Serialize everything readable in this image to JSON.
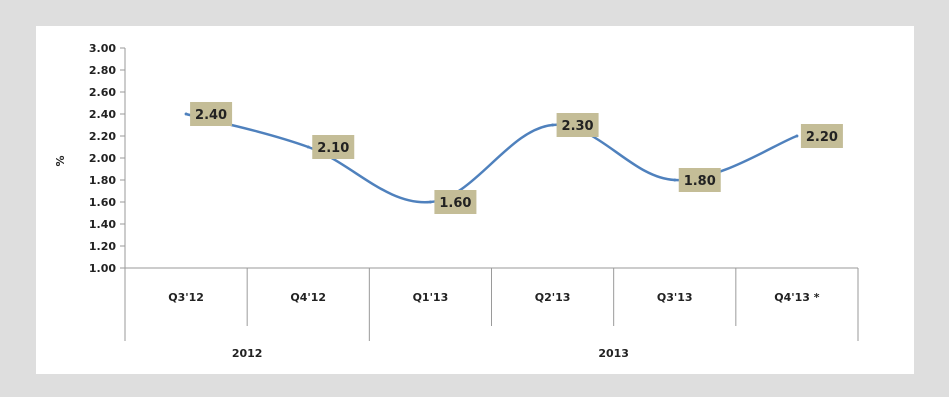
{
  "chart_data": {
    "type": "line",
    "title": "",
    "xlabel": "",
    "ylabel": "%",
    "ylim": [
      1.0,
      3.0
    ],
    "y_ticks": [
      "3.00",
      "2.80",
      "2.60",
      "2.40",
      "2.20",
      "2.00",
      "1.80",
      "1.60",
      "1.40",
      "1.20",
      "1.00"
    ],
    "categories": [
      "Q3'12",
      "Q4'12",
      "Q1'13",
      "Q2'13",
      "Q3'13",
      "Q4'13 *"
    ],
    "groups": [
      {
        "label": "2012",
        "span": 2
      },
      {
        "label": "2013",
        "span": 4
      }
    ],
    "series": [
      {
        "values": [
          2.4,
          2.1,
          1.6,
          2.3,
          1.8,
          2.2
        ],
        "labels": [
          "2.40",
          "2.10",
          "1.60",
          "2.30",
          "1.80",
          "2.20"
        ],
        "color": "#4f81bd"
      }
    ],
    "label_color": "#c4bd97",
    "grid": false
  }
}
